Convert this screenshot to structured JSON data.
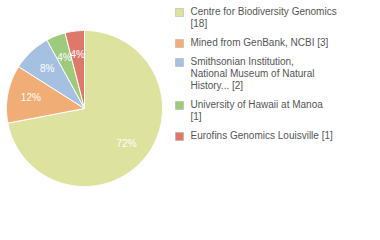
{
  "chart_data": {
    "type": "pie",
    "categories": [
      "Centre for Biodiversity Genomics [18]",
      "Mined from GenBank, NCBI [3]",
      "Smithsonian Institution, National Museum of Natural History... [2]",
      "University of Hawaii at Manoa [1]",
      "Eurofins Genomics Louisville [1]"
    ],
    "values": [
      72,
      12,
      8,
      4,
      4
    ],
    "value_labels": [
      "72%",
      "12%",
      "8%",
      "4%",
      "4%"
    ],
    "colors": [
      "#dde29e",
      "#f0ad75",
      "#a6c0e2",
      "#9dca7c",
      "#e0786a"
    ],
    "data_labels": true,
    "legend": "top-right"
  }
}
